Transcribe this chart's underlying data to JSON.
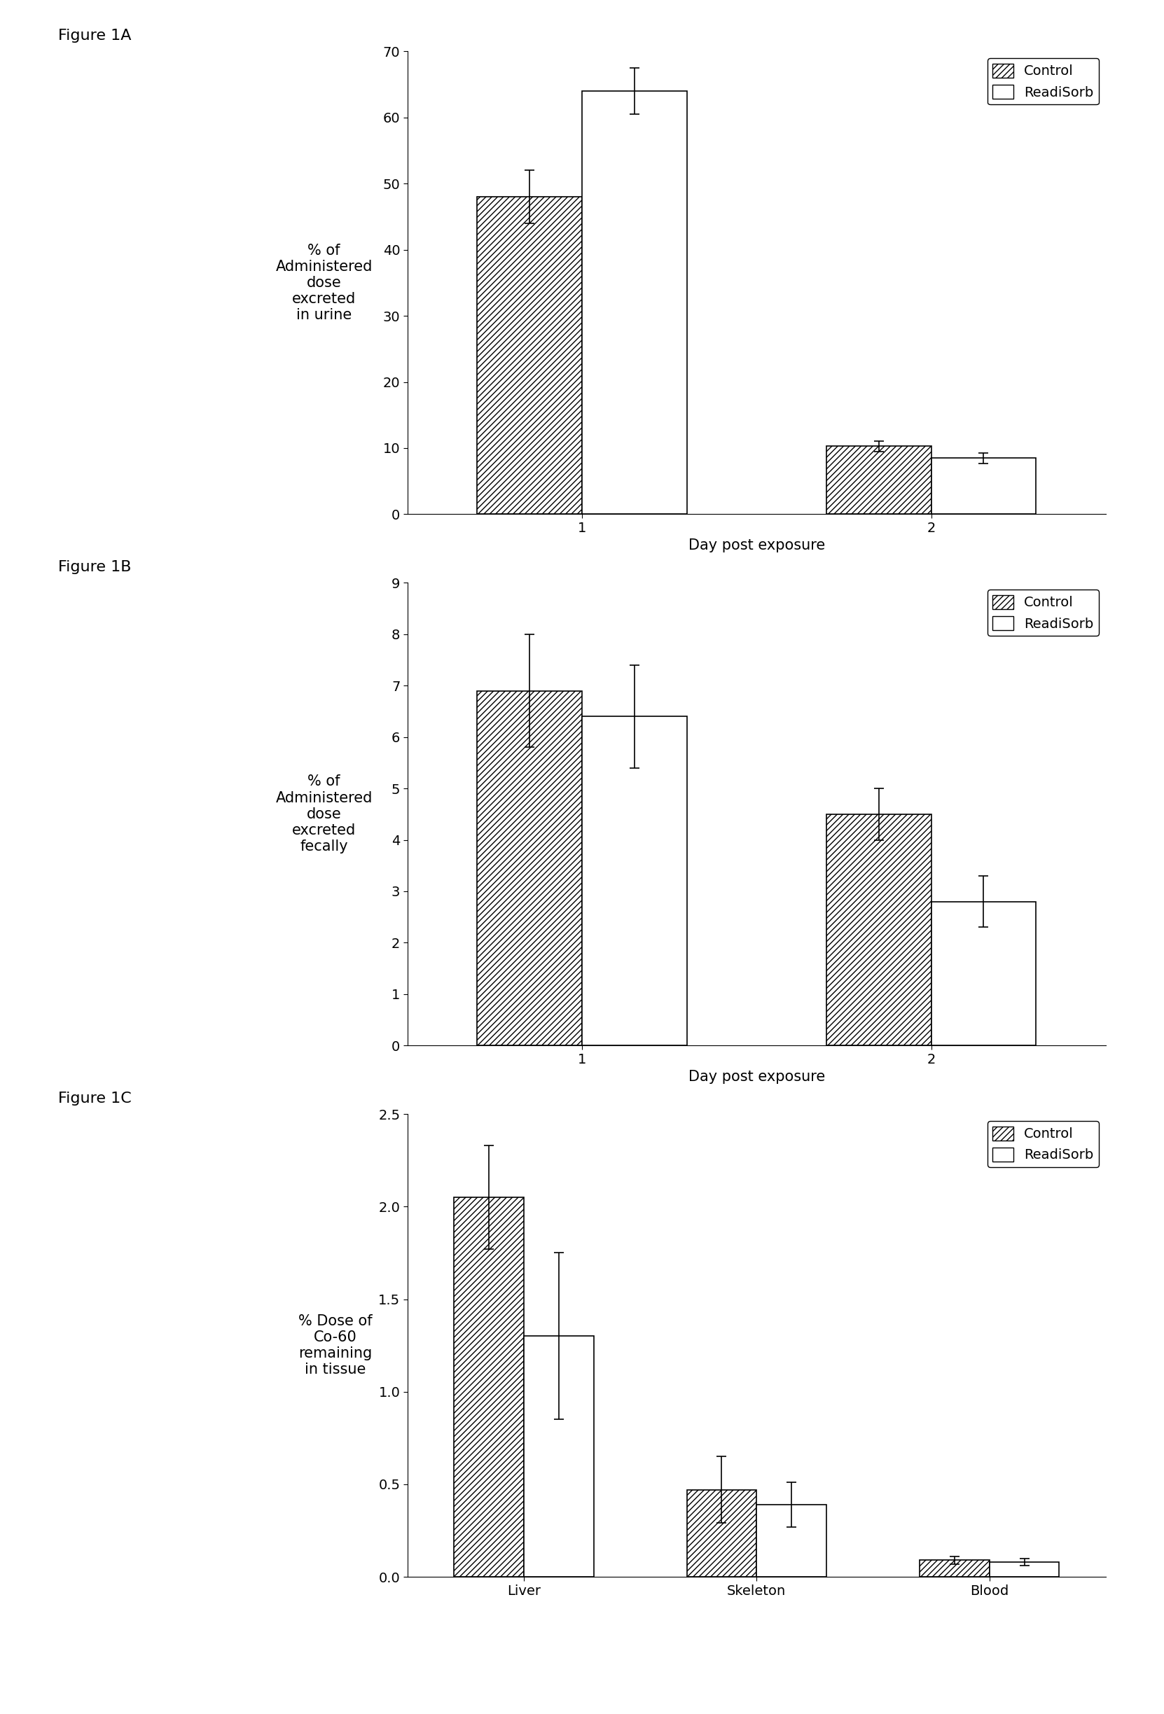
{
  "fig1A": {
    "title": "Figure 1A",
    "ylabel": "% of\nAdministered\ndose\nexcreted\nin urine",
    "xlabel": "Day post exposure",
    "xtick_labels": [
      "1",
      "2"
    ],
    "control_values": [
      48.0,
      10.3
    ],
    "readisorb_values": [
      64.0,
      8.5
    ],
    "control_errors": [
      4.0,
      0.8
    ],
    "readisorb_errors": [
      3.5,
      0.8
    ],
    "ylim": [
      0,
      70
    ],
    "yticks": [
      0,
      10,
      20,
      30,
      40,
      50,
      60,
      70
    ]
  },
  "fig1B": {
    "title": "Figure 1B",
    "ylabel": "% of\nAdministered\ndose\nexcreted\nfecally",
    "xlabel": "Day post exposure",
    "xtick_labels": [
      "1",
      "2"
    ],
    "control_values": [
      6.9,
      4.5
    ],
    "readisorb_values": [
      6.4,
      2.8
    ],
    "control_errors": [
      1.1,
      0.5
    ],
    "readisorb_errors": [
      1.0,
      0.5
    ],
    "ylim": [
      0,
      9
    ],
    "yticks": [
      0,
      1,
      2,
      3,
      4,
      5,
      6,
      7,
      8,
      9
    ]
  },
  "fig1C": {
    "title": "Figure 1C",
    "ylabel": "% Dose of\nCo-60\nremaining\nin tissue",
    "xlabel": "",
    "xtick_labels": [
      "Liver",
      "Skeleton",
      "Blood"
    ],
    "control_values": [
      2.05,
      0.47,
      0.09
    ],
    "readisorb_values": [
      1.3,
      0.39,
      0.08
    ],
    "control_errors": [
      0.28,
      0.18,
      0.02
    ],
    "readisorb_errors": [
      0.45,
      0.12,
      0.02
    ],
    "ylim": [
      0,
      2.5
    ],
    "yticks": [
      0,
      0.5,
      1.0,
      1.5,
      2.0,
      2.5
    ]
  },
  "hatch_control": "////",
  "color_control": "white",
  "color_readisorb": "white",
  "edgecolor": "black",
  "bar_width": 0.3,
  "legend_control": "Control",
  "legend_readisorb": "ReadiSorb",
  "background": "white",
  "fontsize_label": 15,
  "fontsize_tick": 14,
  "fontsize_title": 16,
  "fontsize_legend": 14,
  "fontsize_ylabel": 15
}
